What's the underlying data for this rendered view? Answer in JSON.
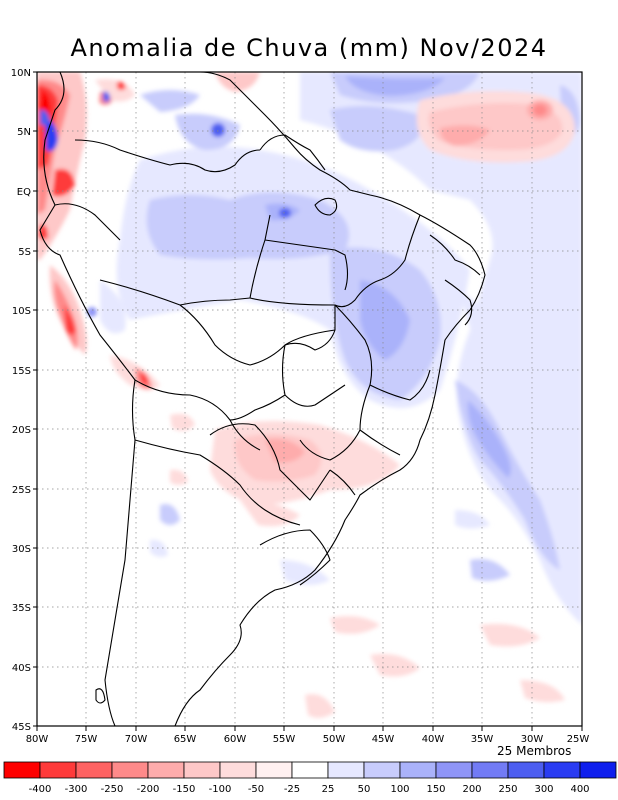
{
  "title": "Anomalia de Chuva (mm) Nov/2024",
  "members_label": "25 Membros",
  "axes": {
    "lat_labels": [
      "10N",
      "5N",
      "EQ",
      "5S",
      "10S",
      "15S",
      "20S",
      "25S",
      "30S",
      "35S",
      "40S",
      "45S"
    ],
    "lon_labels": [
      "80W",
      "75W",
      "70W",
      "65W",
      "60W",
      "55W",
      "50W",
      "45W",
      "40W",
      "35W",
      "30W",
      "25W"
    ]
  },
  "legend": {
    "labels": [
      "-400",
      "-300",
      "-250",
      "-200",
      "-150",
      "-100",
      "-50",
      "-25",
      "25",
      "50",
      "100",
      "150",
      "200",
      "250",
      "300",
      "400"
    ],
    "colors": [
      "#fe0000",
      "#fe3a3a",
      "#fe6262",
      "#fe8a8a",
      "#feacac",
      "#fec8c8",
      "#fedcdc",
      "#fff0f0",
      "#ffffff",
      "#e6e8ff",
      "#c8ccfc",
      "#aab2fa",
      "#8f95f7",
      "#727bf5",
      "#4d5ef0",
      "#2a3cf2",
      "#0f1fed"
    ]
  }
}
